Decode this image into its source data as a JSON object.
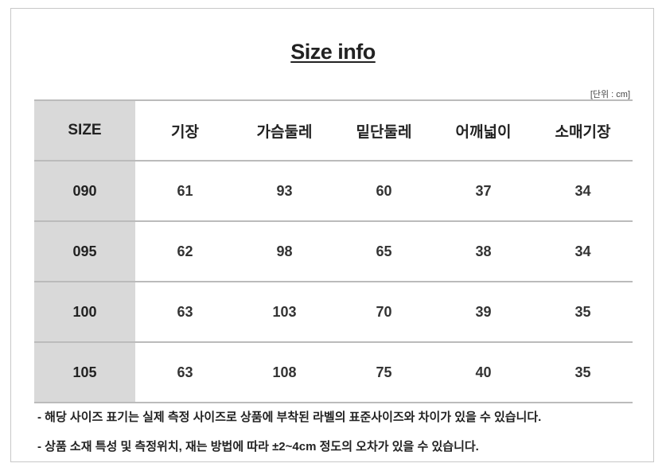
{
  "title": "Size info",
  "unit_label": "[단위 : cm]",
  "table": {
    "headers": [
      "SIZE",
      "기장",
      "가슴둘레",
      "밑단둘레",
      "어깨넓이",
      "소매기장"
    ],
    "rows": [
      [
        "090",
        "61",
        "93",
        "60",
        "37",
        "34"
      ],
      [
        "095",
        "62",
        "98",
        "65",
        "38",
        "34"
      ],
      [
        "100",
        "63",
        "103",
        "70",
        "39",
        "35"
      ],
      [
        "105",
        "63",
        "108",
        "75",
        "40",
        "35"
      ]
    ]
  },
  "notes": [
    "- 해당 사이즈 표기는 실제 측정 사이즈로 상품에 부착된 라벨의 표준사이즈와 차이가 있을 수 있습니다.",
    "- 상품 소재 특성 및 측정위치, 재는 방법에 따라 ±2~4cm 정도의 오차가 있을 수 있습니다."
  ],
  "colors": {
    "size_column_bg": "#d9d9d9",
    "rule": "#bbbbbb"
  }
}
